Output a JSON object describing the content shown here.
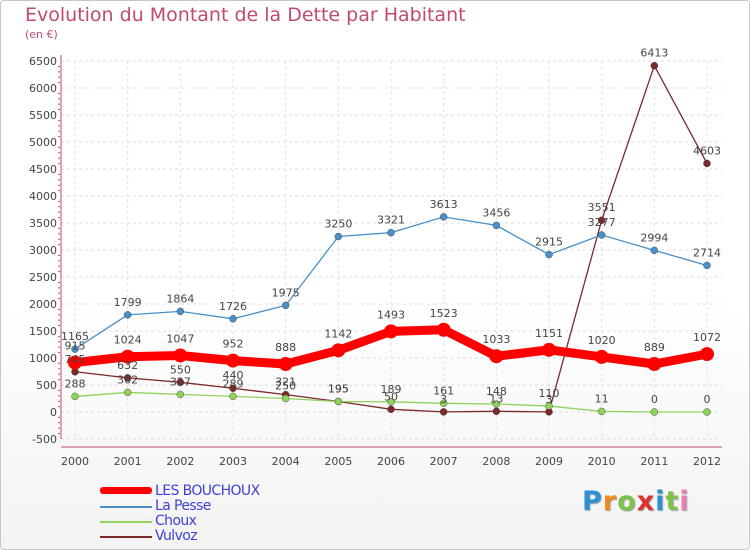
{
  "title": "Evolution du Montant de la Dette par Habitant",
  "subtitle": "(en €)",
  "brand": {
    "letters": [
      "P",
      "r",
      "o",
      "x",
      "i",
      "t",
      "i"
    ],
    "colors": [
      "#2d8fd6",
      "#ef8a1f",
      "#7cc24a",
      "#e0302d",
      "#2d8fd6",
      "#7cc24a",
      "#e77fb0"
    ]
  },
  "chart_data": {
    "type": "line",
    "x": [
      "2000",
      "2001",
      "2002",
      "2003",
      "2004",
      "2005",
      "2006",
      "2007",
      "2008",
      "2009",
      "2010",
      "2011",
      "2012"
    ],
    "ylim": [
      -500,
      6500
    ],
    "yticks": [
      "-500",
      "0",
      "500",
      "1000",
      "1500",
      "2000",
      "2500",
      "3000",
      "3500",
      "4000",
      "4500",
      "5000",
      "5500",
      "6000",
      "6500"
    ],
    "grid": true,
    "legend_position": "bottom-left",
    "series": [
      {
        "name": "LES BOUCHOUX",
        "color": "#ff0000",
        "values": [
          915,
          1024,
          1047,
          952,
          888,
          1142,
          1493,
          1523,
          1033,
          1151,
          1020,
          889,
          1072
        ],
        "labels": [
          "915",
          "1024",
          "1047",
          "952",
          "888",
          "1142",
          "1493",
          "1523",
          "1033",
          "1151",
          "1020",
          "889",
          "1072"
        ]
      },
      {
        "name": "La Pesse",
        "color": "#4a90c8",
        "values": [
          1165,
          1799,
          1864,
          1726,
          1975,
          3250,
          3321,
          3613,
          3456,
          2915,
          3277,
          2994,
          2714
        ],
        "labels": [
          "1165",
          "1799",
          "1864",
          "1726",
          "1975",
          "3250",
          "3321",
          "3613",
          "3456",
          "2915",
          "3277",
          "2994",
          "2714"
        ]
      },
      {
        "name": "Choux",
        "color": "#8fd25a",
        "values": [
          288,
          362,
          327,
          289,
          250,
          195,
          189,
          161,
          148,
          110,
          11,
          0,
          0
        ],
        "labels": [
          "288",
          "362",
          "327",
          "289",
          "250",
          "195",
          "189",
          "161",
          "148",
          "110",
          "11",
          "0",
          "0"
        ]
      },
      {
        "name": "Vulvoz",
        "color": "#7a2a2a",
        "values": [
          745,
          632,
          550,
          440,
          321,
          195,
          50,
          3,
          13,
          3,
          3551,
          6413,
          4603
        ],
        "labels": [
          "745",
          "632",
          "550",
          "440",
          "321",
          "195",
          "50",
          "3",
          "13",
          "3",
          "3551",
          "6413",
          "4603"
        ]
      }
    ]
  }
}
